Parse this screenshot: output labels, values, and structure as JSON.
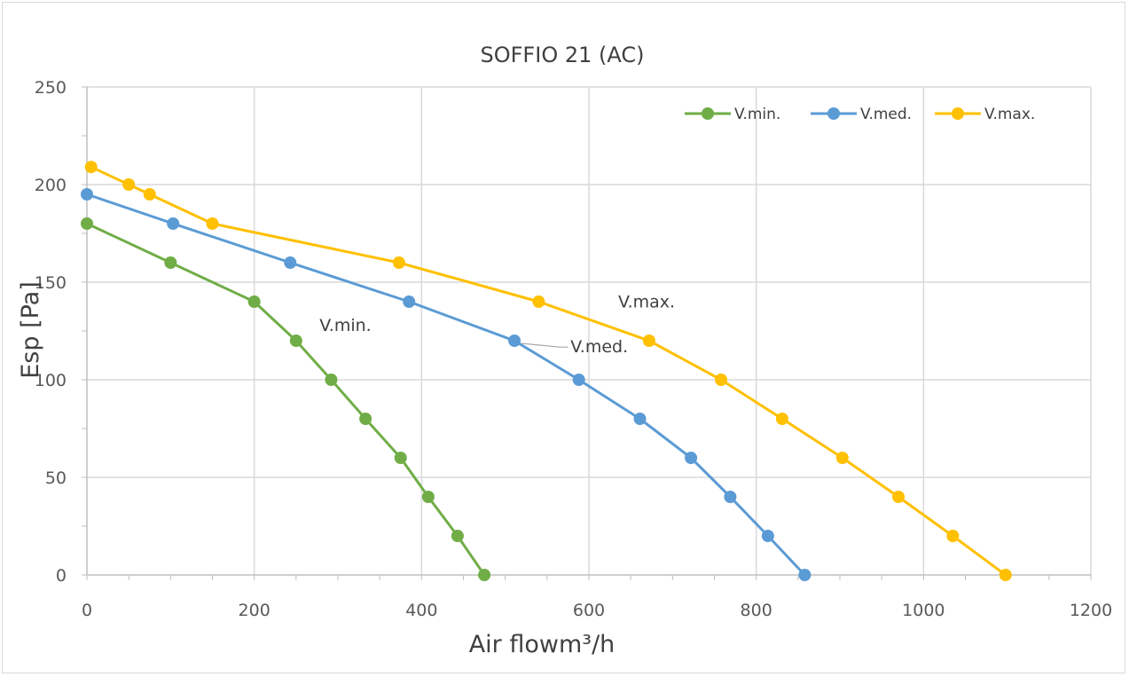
{
  "chart_data": {
    "type": "line",
    "title": "SOFFIO 21 (AC)",
    "xlabel": "Air flowm³/h",
    "ylabel": "Esp [Pa]",
    "xlim": [
      0,
      1200
    ],
    "ylim": [
      0,
      250
    ],
    "x_ticks": [
      "0",
      "200",
      "400",
      "600",
      "800",
      "1000",
      "1200"
    ],
    "y_ticks": [
      "0",
      "50",
      "100",
      "150",
      "200",
      "250"
    ],
    "grid": true,
    "legend_position": "top-right",
    "series": [
      {
        "name": "V.min.",
        "color": "#70ad47",
        "points": [
          [
            0,
            180
          ],
          [
            100,
            160
          ],
          [
            200,
            140
          ],
          [
            250,
            120
          ],
          [
            292,
            100
          ],
          [
            333,
            80
          ],
          [
            375,
            60
          ],
          [
            408,
            40
          ],
          [
            443,
            20
          ],
          [
            475,
            0
          ]
        ]
      },
      {
        "name": "V.med.",
        "color": "#5b9bd5",
        "points": [
          [
            0,
            195
          ],
          [
            103,
            180
          ],
          [
            243,
            160
          ],
          [
            385,
            140
          ],
          [
            511,
            120
          ],
          [
            588,
            100
          ],
          [
            661,
            80
          ],
          [
            722,
            60
          ],
          [
            769,
            40
          ],
          [
            814,
            20
          ],
          [
            858,
            0
          ]
        ]
      },
      {
        "name": "V.max.",
        "color": "#ffc000",
        "points": [
          [
            5,
            209
          ],
          [
            50,
            200
          ],
          [
            75,
            195
          ],
          [
            150,
            180
          ],
          [
            373,
            160
          ],
          [
            540,
            140
          ],
          [
            672,
            120
          ],
          [
            758,
            100
          ],
          [
            831,
            80
          ],
          [
            903,
            60
          ],
          [
            970,
            40
          ],
          [
            1035,
            20
          ],
          [
            1098,
            0
          ]
        ]
      }
    ],
    "annotations": [
      {
        "text": "V.min.",
        "series": "V.min."
      },
      {
        "text": "V.med.",
        "series": "V.med."
      },
      {
        "text": "V.max.",
        "series": "V.max."
      }
    ]
  }
}
